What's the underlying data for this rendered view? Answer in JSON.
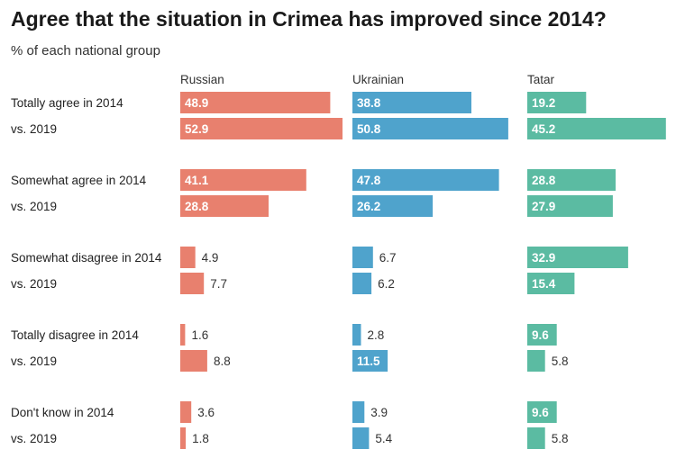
{
  "title": "Agree that the situation in Crimea has improved since 2014?",
  "subtitle": "% of each national group",
  "colors": {
    "Russian": "#e8806e",
    "Ukrainian": "#4fa3cc",
    "Tatar": "#5bbba2"
  },
  "chart_data": {
    "type": "bar",
    "orientation": "horizontal",
    "title": "Agree that the situation in Crimea has improved since 2014?",
    "subtitle": "% of each national group",
    "groups": [
      "Russian",
      "Ukrainian",
      "Tatar"
    ],
    "categories": [
      "Totally agree in 2014",
      "vs. 2019",
      "Somewhat agree in 2014",
      "vs. 2019",
      "Somewhat disagree in 2014",
      "vs. 2019",
      "Totally disagree in 2014",
      "vs. 2019",
      "Don't know in 2014",
      "vs. 2019"
    ],
    "series": [
      {
        "name": "Russian",
        "values": [
          48.9,
          52.9,
          41.1,
          28.8,
          4.9,
          7.7,
          1.6,
          8.8,
          3.6,
          1.8
        ]
      },
      {
        "name": "Ukrainian",
        "values": [
          38.8,
          50.8,
          47.8,
          26.2,
          6.7,
          6.2,
          2.8,
          11.5,
          3.9,
          5.4
        ]
      },
      {
        "name": "Tatar",
        "values": [
          19.2,
          45.2,
          28.8,
          27.9,
          32.9,
          15.4,
          9.6,
          5.8,
          9.6,
          5.8
        ]
      }
    ],
    "xlim": [
      0,
      52.9
    ]
  }
}
